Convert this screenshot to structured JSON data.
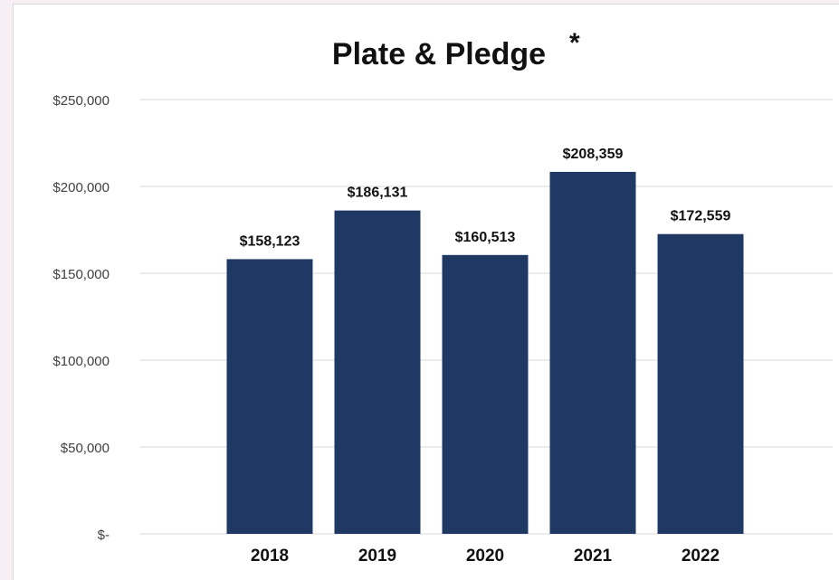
{
  "chart_data": {
    "type": "bar",
    "title": "Plate & Pledge",
    "title_mark": "*",
    "xlabel": "",
    "ylabel": "",
    "categories": [
      "2018",
      "2019",
      "2020",
      "2021",
      "2022"
    ],
    "values": [
      158123,
      186131,
      160513,
      208359,
      172559
    ],
    "data_labels": [
      "$158,123",
      "$186,131",
      "$160,513",
      "$208,359",
      "$172,559"
    ],
    "y_ticks": [
      {
        "value": 0,
        "label": "$-"
      },
      {
        "value": 50000,
        "label": "$50,000"
      },
      {
        "value": 100000,
        "label": "$100,000"
      },
      {
        "value": 150000,
        "label": "$150,000"
      },
      {
        "value": 200000,
        "label": "$200,000"
      },
      {
        "value": 250000,
        "label": "$250,000"
      }
    ],
    "ylim": [
      0,
      250000
    ],
    "grid": true,
    "legend": "none",
    "bar_color": "#1f3864"
  }
}
